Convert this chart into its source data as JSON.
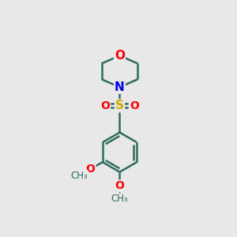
{
  "background_color": "#e8e8e8",
  "bond_color": "#2d6b5e",
  "bond_width": 1.8,
  "atom_colors": {
    "O": "#ff0000",
    "N": "#0000ee",
    "S": "#ccaa00",
    "C": "#2d6b5e"
  },
  "font_size": 10,
  "fig_size": [
    3.0,
    3.0
  ],
  "dpi": 100
}
